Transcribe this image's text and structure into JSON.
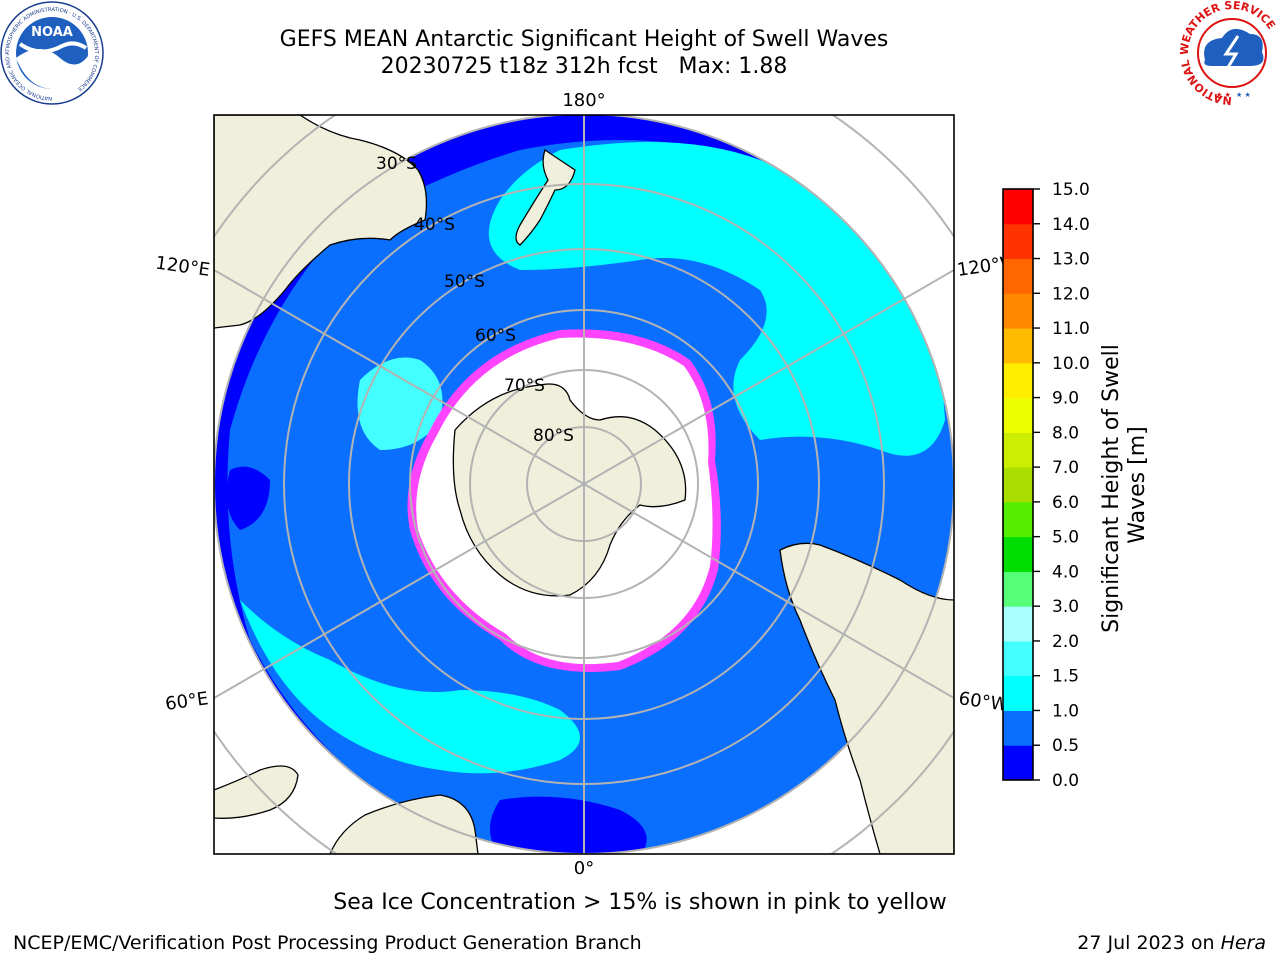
{
  "title": {
    "line1": "GEFS MEAN Antarctic Significant Height of Swell Waves",
    "line2": "20230725 t18z 312h fcst   Max: 1.88"
  },
  "map": {
    "projection": "south-polar-stereographic",
    "longitude_labels": {
      "top": "180°",
      "bottom": "0°",
      "left_upper": "120°E",
      "left_lower": "60°E",
      "right_upper": "120°W",
      "right_lower": "60°W"
    },
    "latitude_labels": [
      "30°S",
      "40°S",
      "50°S",
      "60°S",
      "70°S",
      "80°S"
    ],
    "colors": {
      "land": "#efefdc",
      "ocean_low": "#0000ff",
      "ocean_mid": "#0a66ff",
      "ocean_high": "#00ffff",
      "ice_edge": "#ff44ff",
      "ice_white": "#ffffff",
      "gridline": "#b3b3b3"
    }
  },
  "colorbar": {
    "label": "Significant Height of Swell Waves [m]",
    "ticks": [
      "0.0",
      "0.5",
      "1.0",
      "1.5",
      "2.0",
      "3.0",
      "4.0",
      "5.0",
      "6.0",
      "7.0",
      "8.0",
      "9.0",
      "10.0",
      "11.0",
      "12.0",
      "13.0",
      "14.0",
      "15.0"
    ],
    "colors": [
      "#0000ff",
      "#0a6eff",
      "#00ffff",
      "#44ffff",
      "#a8ffff",
      "#55ff77",
      "#00dd00",
      "#55ee00",
      "#aadd00",
      "#ccee00",
      "#eeff00",
      "#ffee00",
      "#ffbb00",
      "#ff8800",
      "#ff6600",
      "#ff3300",
      "#ff0000"
    ]
  },
  "logos": {
    "noaa_text": "NOAA",
    "noaa_ring_text": "NATIONAL OCEANIC AND ATMOSPHERIC ADMINISTRATION · U.S. DEPARTMENT OF COMMERCE",
    "nws_ring_text": "NATIONAL WEATHER SERVICE"
  },
  "caption": "Sea Ice Concentration > 15% is shown in pink to yellow",
  "footer": {
    "left": "NCEP/EMC/Verification Post Processing Product Generation Branch",
    "right_prefix": "27 Jul 2023 on ",
    "right_italic": "Hera"
  }
}
